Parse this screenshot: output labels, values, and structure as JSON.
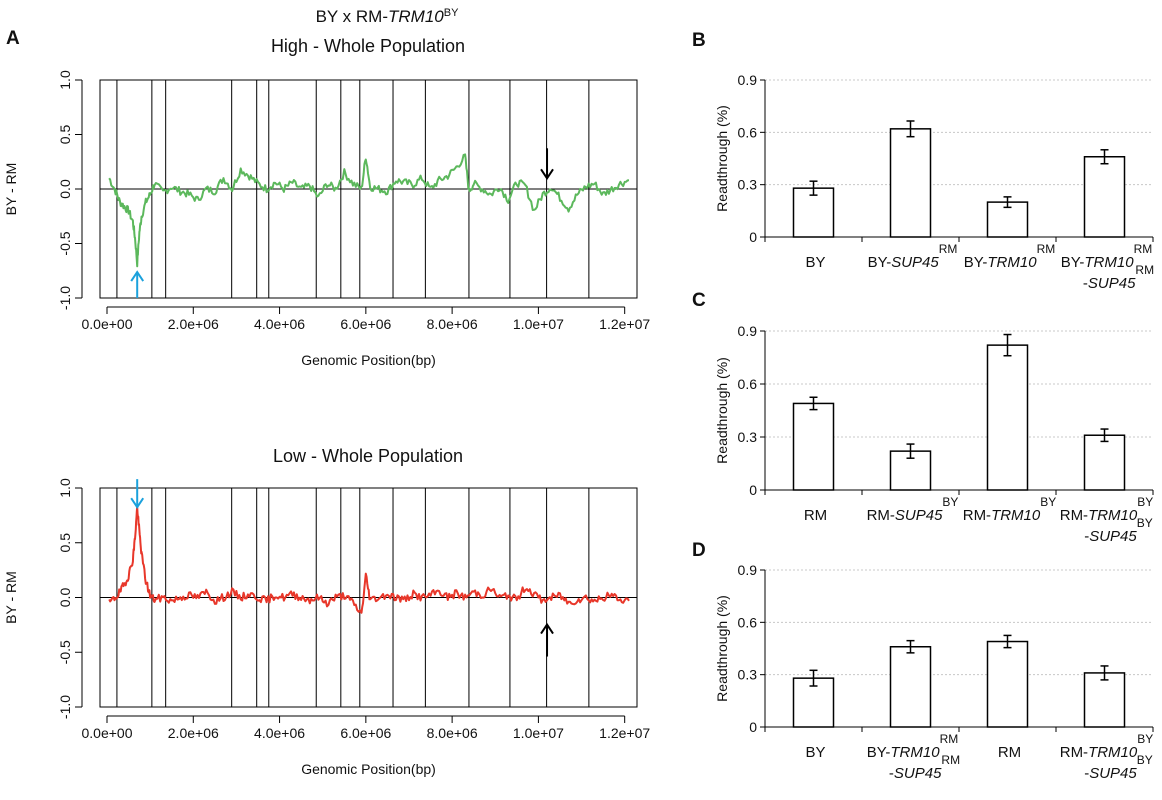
{
  "figure": {
    "title_prefix": "BY x RM-",
    "title_gene": "TRM10",
    "title_sup": "BY",
    "panel_labels": [
      "A",
      "B",
      "C",
      "D"
    ]
  },
  "colors": {
    "high_series": "#5cb85c",
    "low_series": "#e8372a",
    "cyan_arrow": "#1ba1dc",
    "black_arrow": "#000000"
  },
  "chart_data": [
    {
      "type": "line",
      "panel": "A",
      "title": "High - Whole Population",
      "xlabel": "Genomic Position(bp)",
      "ylabel": "BY - RM",
      "xlim": [
        0,
        12100000
      ],
      "ylim": [
        -1.0,
        1.0
      ],
      "xticks": [
        0,
        2000000,
        4000000,
        6000000,
        8000000,
        10000000,
        12000000
      ],
      "xtick_labels": [
        "0.0e+00",
        "2.0e+06",
        "4.0e+06",
        "6.0e+06",
        "8.0e+06",
        "1.0e+07",
        "1.2e+07"
      ],
      "yticks": [
        -1.0,
        -0.5,
        0.0,
        0.5,
        1.0
      ],
      "ytick_labels": [
        "-1.0",
        "-0.5",
        "0.0",
        "0.5",
        "1.0"
      ],
      "chromosome_boundaries": [
        230000,
        1040000,
        1360000,
        2890000,
        3470000,
        3750000,
        4850000,
        5420000,
        5860000,
        6630000,
        7380000,
        8390000,
        9340000,
        10190000,
        11170000
      ],
      "series": [
        {
          "x": [
            50000,
            200000,
            300000,
            400000,
            500000,
            600000,
            650000,
            700000,
            750000,
            800000,
            900000,
            1000000,
            1100000,
            1300000,
            1500000,
            1700000,
            1900000,
            2100000,
            2300000,
            2500000,
            2700000,
            2900000,
            3100000,
            3300000,
            3500000,
            3700000,
            3900000,
            4100000,
            4300000,
            4500000,
            4700000,
            4900000,
            5100000,
            5300000,
            5500000,
            5700000,
            5900000,
            6000000,
            6100000,
            6300000,
            6500000,
            6700000,
            6900000,
            7100000,
            7300000,
            7500000,
            7700000,
            7900000,
            8100000,
            8300000,
            8390000,
            8500000,
            8700000,
            8900000,
            9100000,
            9300000,
            9500000,
            9700000,
            9900000,
            10100000,
            10300000,
            10500000,
            10700000,
            10900000,
            11100000,
            11300000,
            11500000,
            11700000,
            11900000,
            12100000
          ],
          "y": [
            0.1,
            -0.02,
            -0.12,
            -0.16,
            -0.2,
            -0.3,
            -0.45,
            -0.68,
            -0.4,
            -0.25,
            -0.12,
            -0.05,
            0.05,
            -0.03,
            0.02,
            -0.02,
            -0.05,
            -0.1,
            0.0,
            -0.02,
            0.1,
            0.0,
            0.18,
            0.12,
            0.05,
            0.0,
            0.06,
            0.0,
            0.06,
            0.0,
            0.03,
            -0.08,
            0.05,
            0.0,
            0.15,
            0.05,
            0.0,
            0.3,
            0.02,
            0.0,
            -0.02,
            0.08,
            0.06,
            0.04,
            0.1,
            0.0,
            0.08,
            0.12,
            0.2,
            0.3,
            -0.02,
            0.05,
            0.0,
            -0.05,
            0.02,
            -0.1,
            0.06,
            0.03,
            -0.2,
            -0.05,
            0.02,
            -0.08,
            -0.18,
            -0.05,
            0.02,
            0.05,
            -0.05,
            0.0,
            0.05,
            0.08
          ]
        }
      ],
      "arrows": [
        {
          "x": 700000,
          "direction": "up",
          "color": "cyan"
        },
        {
          "x": 10200000,
          "direction": "down",
          "color": "black"
        }
      ]
    },
    {
      "type": "line",
      "panel": "A",
      "title": "Low - Whole Population",
      "xlabel": "Genomic Position(bp)",
      "ylabel": "BY - RM",
      "xlim": [
        0,
        12100000
      ],
      "ylim": [
        -1.0,
        1.0
      ],
      "xticks": [
        0,
        2000000,
        4000000,
        6000000,
        8000000,
        10000000,
        12000000
      ],
      "xtick_labels": [
        "0.0e+00",
        "2.0e+06",
        "4.0e+06",
        "6.0e+06",
        "8.0e+06",
        "1.0e+07",
        "1.2e+07"
      ],
      "yticks": [
        -1.0,
        -0.5,
        0.0,
        0.5,
        1.0
      ],
      "ytick_labels": [
        "-1.0",
        "-0.5",
        "0.0",
        "0.5",
        "1.0"
      ],
      "chromosome_boundaries": [
        230000,
        1040000,
        1360000,
        2890000,
        3470000,
        3750000,
        4850000,
        5420000,
        5860000,
        6630000,
        7380000,
        8390000,
        9340000,
        10190000,
        11170000
      ],
      "series": [
        {
          "x": [
            50000,
            200000,
            300000,
            400000,
            500000,
            600000,
            650000,
            700000,
            750000,
            800000,
            900000,
            1000000,
            1100000,
            1300000,
            1500000,
            1700000,
            1900000,
            2100000,
            2300000,
            2500000,
            2700000,
            2900000,
            3100000,
            3300000,
            3500000,
            3700000,
            3900000,
            4100000,
            4300000,
            4500000,
            4700000,
            4900000,
            5100000,
            5300000,
            5500000,
            5700000,
            5900000,
            6000000,
            6100000,
            6300000,
            6500000,
            6700000,
            6900000,
            7100000,
            7300000,
            7500000,
            7700000,
            7900000,
            8100000,
            8300000,
            8500000,
            8700000,
            8900000,
            9100000,
            9300000,
            9500000,
            9700000,
            9900000,
            10100000,
            10300000,
            10500000,
            10700000,
            10900000,
            11100000,
            11300000,
            11500000,
            11700000,
            11900000,
            12100000
          ],
          "y": [
            -0.05,
            0.0,
            0.05,
            0.12,
            0.2,
            0.35,
            0.55,
            0.82,
            0.6,
            0.4,
            0.15,
            0.02,
            -0.02,
            0.0,
            -0.03,
            0.0,
            0.02,
            0.0,
            0.05,
            -0.03,
            0.0,
            0.05,
            0.0,
            0.03,
            0.0,
            -0.03,
            0.02,
            0.0,
            0.03,
            0.0,
            -0.02,
            0.0,
            -0.05,
            0.0,
            0.02,
            -0.05,
            -0.15,
            0.2,
            -0.02,
            0.0,
            0.03,
            0.0,
            -0.02,
            0.03,
            0.0,
            0.02,
            0.06,
            0.0,
            0.04,
            0.0,
            0.05,
            0.02,
            0.08,
            0.0,
            0.02,
            -0.02,
            0.1,
            0.03,
            -0.03,
            0.0,
            0.02,
            -0.05,
            -0.02,
            0.0,
            -0.03,
            0.0,
            0.02,
            -0.02,
            -0.03
          ],
          "comment_excluded": false
        }
      ],
      "arrows": [
        {
          "x": 700000,
          "direction": "down",
          "color": "cyan"
        },
        {
          "x": 10200000,
          "direction": "up",
          "color": "black"
        }
      ]
    },
    {
      "type": "bar",
      "panel": "B",
      "ylabel": "Readthrough (%)",
      "ylim": [
        0,
        0.9
      ],
      "yticks": [
        0,
        0.3,
        0.6,
        0.9
      ],
      "ytick_labels": [
        "0",
        "0.3",
        "0.6",
        "0.9"
      ],
      "categories": [
        {
          "line1": [
            {
              "t": "BY"
            }
          ],
          "line2": []
        },
        {
          "line1": [
            {
              "t": "BY-"
            },
            {
              "t": "SUP45",
              "i": true
            },
            {
              "t": "RM",
              "sup": true
            }
          ],
          "line2": []
        },
        {
          "line1": [
            {
              "t": "BY-"
            },
            {
              "t": "TRM10",
              "i": true
            },
            {
              "t": "RM",
              "sup": true
            }
          ],
          "line2": []
        },
        {
          "line1": [
            {
              "t": "BY-"
            },
            {
              "t": "TRM10",
              "i": true
            },
            {
              "t": "RM",
              "sup": true
            }
          ],
          "line2": [
            {
              "t": "-"
            },
            {
              "t": "SUP45",
              "i": true
            },
            {
              "t": "RM",
              "sup": true
            }
          ]
        }
      ],
      "values": [
        0.28,
        0.62,
        0.2,
        0.46
      ],
      "errors": [
        0.04,
        0.045,
        0.03,
        0.04
      ]
    },
    {
      "type": "bar",
      "panel": "C",
      "ylabel": "Readthrough (%)",
      "ylim": [
        0,
        0.9
      ],
      "yticks": [
        0,
        0.3,
        0.6,
        0.9
      ],
      "ytick_labels": [
        "0",
        "0.3",
        "0.6",
        "0.9"
      ],
      "categories": [
        {
          "line1": [
            {
              "t": "RM"
            }
          ],
          "line2": []
        },
        {
          "line1": [
            {
              "t": "RM-"
            },
            {
              "t": "SUP45",
              "i": true
            },
            {
              "t": "BY",
              "sup": true
            }
          ],
          "line2": []
        },
        {
          "line1": [
            {
              "t": "RM-"
            },
            {
              "t": "TRM10",
              "i": true
            },
            {
              "t": "BY",
              "sup": true
            }
          ],
          "line2": []
        },
        {
          "line1": [
            {
              "t": "RM-"
            },
            {
              "t": "TRM10",
              "i": true
            },
            {
              "t": "BY",
              "sup": true
            }
          ],
          "line2": [
            {
              "t": "-"
            },
            {
              "t": "SUP45",
              "i": true
            },
            {
              "t": "BY",
              "sup": true
            }
          ]
        }
      ],
      "values": [
        0.49,
        0.22,
        0.82,
        0.31
      ],
      "errors": [
        0.035,
        0.04,
        0.06,
        0.035
      ]
    },
    {
      "type": "bar",
      "panel": "D",
      "ylabel": "Readthrough (%)",
      "ylim": [
        0,
        0.9
      ],
      "yticks": [
        0,
        0.3,
        0.6,
        0.9
      ],
      "ytick_labels": [
        "0",
        "0.3",
        "0.6",
        "0.9"
      ],
      "categories": [
        {
          "line1": [
            {
              "t": "BY"
            }
          ],
          "line2": []
        },
        {
          "line1": [
            {
              "t": "BY-"
            },
            {
              "t": "TRM10",
              "i": true
            },
            {
              "t": "RM",
              "sup": true
            }
          ],
          "line2": [
            {
              "t": "-"
            },
            {
              "t": "SUP45",
              "i": true
            },
            {
              "t": "RM",
              "sup": true
            }
          ]
        },
        {
          "line1": [
            {
              "t": "RM"
            }
          ],
          "line2": []
        },
        {
          "line1": [
            {
              "t": "RM-"
            },
            {
              "t": "TRM10",
              "i": true
            },
            {
              "t": "BY",
              "sup": true
            }
          ],
          "line2": [
            {
              "t": "-"
            },
            {
              "t": "SUP45",
              "i": true
            },
            {
              "t": "BY",
              "sup": true
            }
          ]
        }
      ],
      "values": [
        0.28,
        0.46,
        0.49,
        0.31
      ],
      "errors": [
        0.045,
        0.035,
        0.035,
        0.04
      ]
    }
  ]
}
